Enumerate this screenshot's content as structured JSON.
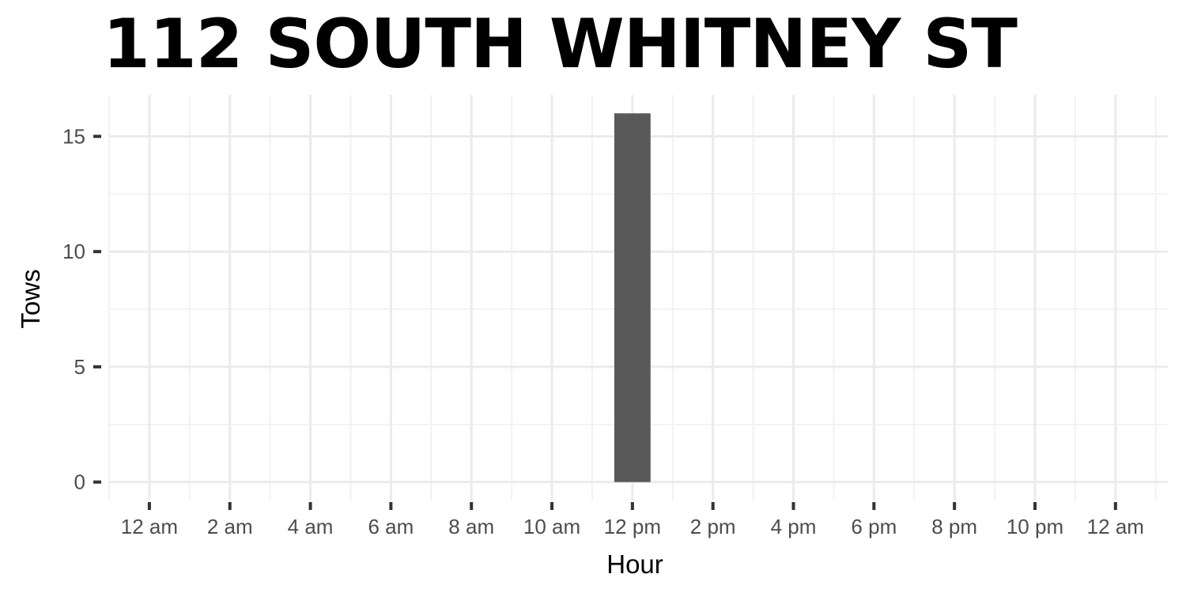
{
  "chart_data": {
    "type": "bar",
    "title": "112 SOUTH WHITNEY ST",
    "xlabel": "Hour",
    "ylabel": "Tows",
    "x_tick_labels": [
      "12 am",
      "2 am",
      "4 am",
      "6 am",
      "8 am",
      "10 am",
      "12 pm",
      "2 pm",
      "4 pm",
      "6 pm",
      "8 pm",
      "10 pm",
      "12 am"
    ],
    "y_ticks": [
      0,
      5,
      10,
      15
    ],
    "ylim": [
      -0.8,
      16.8
    ],
    "xlim": [
      -1,
      25.3
    ],
    "x_tick_step_hours": 2,
    "grid": true,
    "legend": "none",
    "bars": [
      {
        "hour": 12,
        "value": 16
      }
    ],
    "bar_width_hours": 0.9,
    "colors": {
      "bar": "#595959",
      "grid_major": "#ebebeb",
      "grid_minor": "#f2f2f2",
      "tick": "#333333"
    }
  }
}
